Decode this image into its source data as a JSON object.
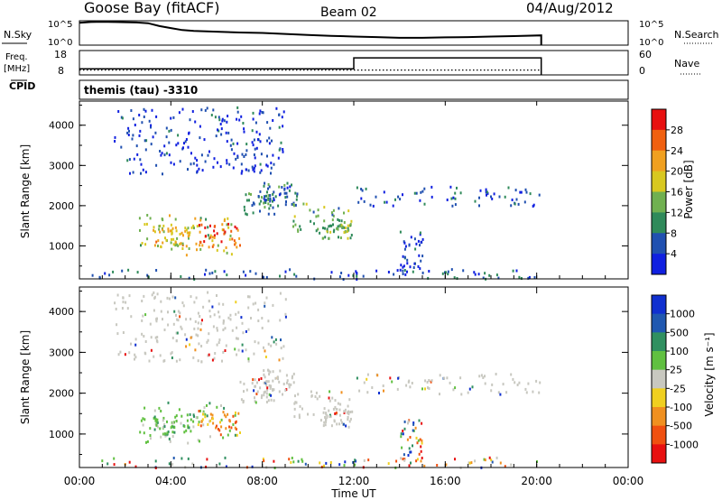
{
  "header": {
    "station": "Goose Bay (fitACF)",
    "beam": "Beam 02",
    "date": "04/Aug/2012"
  },
  "panels": {
    "nsky_label": "N.Sky",
    "nsky_ticks": [
      "10^5",
      "10^0"
    ],
    "nsearch_label": "N.Search",
    "freq_label": "Freq.",
    "freq_unit": "[MHz]",
    "freq_ticks": [
      "18",
      "8"
    ],
    "nave_ticks": [
      "60",
      "0"
    ],
    "nave_label": "Nave",
    "cpid_label": "CPID",
    "cpid_value": "themis (tau) -3310"
  },
  "chart_data": [
    {
      "type": "line",
      "title": "N.Sky / N.Search",
      "x_unit": "hours UT",
      "x": [
        0.0,
        0.5,
        1.0,
        1.5,
        2.0,
        2.5,
        3.0,
        3.5,
        4.0,
        4.5,
        5.0,
        6.0,
        7.0,
        8.0,
        9.0,
        10.0,
        11.0,
        12.0,
        13.0,
        14.0,
        15.0,
        16.0,
        17.0,
        18.0,
        19.0,
        20.2
      ],
      "series": [
        {
          "name": "N.Sky",
          "values_fraction": [
            0.92,
            0.95,
            0.96,
            0.95,
            0.94,
            0.93,
            0.9,
            0.78,
            0.7,
            0.62,
            0.58,
            0.55,
            0.52,
            0.5,
            0.46,
            0.42,
            0.38,
            0.35,
            0.33,
            0.3,
            0.3,
            0.32,
            0.33,
            0.35,
            0.37,
            0.4
          ]
        }
      ]
    },
    {
      "type": "line",
      "title": "Freq. / Nave",
      "x_unit": "hours UT",
      "series": [
        {
          "name": "Freq.",
          "segments": [
            {
              "x_start": 0.0,
              "x_end": 12.0,
              "value": 10.5
            },
            {
              "x_start": 12.0,
              "x_end": 20.2,
              "value": 15.0
            }
          ]
        },
        {
          "name": "Nave",
          "segments": [
            {
              "x_start": 0.0,
              "x_end": 20.2,
              "value": 12
            }
          ]
        }
      ]
    },
    {
      "type": "heatmap",
      "title": "Power",
      "ylabel": "Slant Range [km]",
      "y_ticks": [
        "1000",
        "2000",
        "3000",
        "4000"
      ],
      "ylim": [
        180,
        4600
      ],
      "colorbar_label": "Power [dB]",
      "colorbar_ticks": [
        "4",
        "8",
        "12",
        "16",
        "20",
        "24",
        "28"
      ],
      "colorbar_colors": [
        "#1020e0",
        "#2050b0",
        "#2f8a5a",
        "#70b050",
        "#d8c820",
        "#f0a020",
        "#f06010",
        "#e81010"
      ]
    },
    {
      "type": "heatmap",
      "title": "Velocity",
      "ylabel": "Slant Range [km]",
      "y_ticks": [
        "1000",
        "2000",
        "3000",
        "4000"
      ],
      "ylim": [
        180,
        4600
      ],
      "xlabel": "Time UT",
      "x_ticks": [
        "00:00",
        "04:00",
        "08:00",
        "12:00",
        "16:00",
        "20:00",
        "00:00"
      ],
      "xlim": [
        0,
        24
      ],
      "colorbar_label": "Velocity [m s⁻¹]",
      "colorbar_ticks": [
        "1000",
        "500",
        "100",
        "25",
        "-25",
        "-100",
        "-500",
        "-1000"
      ],
      "colorbar_colors": [
        "#1030d0",
        "#2058b0",
        "#309060",
        "#60c040",
        "#c8c8c0",
        "#f0d020",
        "#f09020",
        "#f05010",
        "#e81010"
      ]
    }
  ],
  "echo_regions": [
    {
      "t0": 2.6,
      "t1": 6.8,
      "r0": 800,
      "r1": 1800,
      "power": 16,
      "vel": "pos"
    },
    {
      "t0": 5.0,
      "t1": 7.0,
      "r0": 1000,
      "r1": 1600,
      "power": 26,
      "vel": "neg"
    },
    {
      "t0": 3.2,
      "t1": 4.8,
      "r0": 1000,
      "r1": 1500,
      "power": 20,
      "vel": "pos"
    },
    {
      "t0": 7.0,
      "t1": 8.5,
      "r0": 1800,
      "r1": 2400,
      "power": 10,
      "vel": "zero"
    },
    {
      "t0": 8.0,
      "t1": 9.5,
      "r0": 2000,
      "r1": 2600,
      "power": 8,
      "vel": "zero"
    },
    {
      "t0": 9.3,
      "t1": 11.8,
      "r0": 1350,
      "r1": 2100,
      "power": 12,
      "vel": "zero"
    },
    {
      "t0": 10.6,
      "t1": 11.9,
      "r0": 1200,
      "r1": 1700,
      "power": 14,
      "vel": "zero"
    },
    {
      "t0": 12.0,
      "t1": 20.2,
      "r0": 2000,
      "r1": 2500,
      "power": 5,
      "vel": "zero"
    },
    {
      "t0": 0.5,
      "t1": 20.0,
      "r0": 200,
      "r1": 450,
      "power": 6,
      "vel": "mix"
    },
    {
      "t0": 14.0,
      "t1": 15.0,
      "r0": 300,
      "r1": 1400,
      "power": 5,
      "vel": "mix"
    },
    {
      "t0": 1.5,
      "t1": 9.0,
      "r0": 2800,
      "r1": 4500,
      "power": 4,
      "vel": "zero"
    }
  ]
}
